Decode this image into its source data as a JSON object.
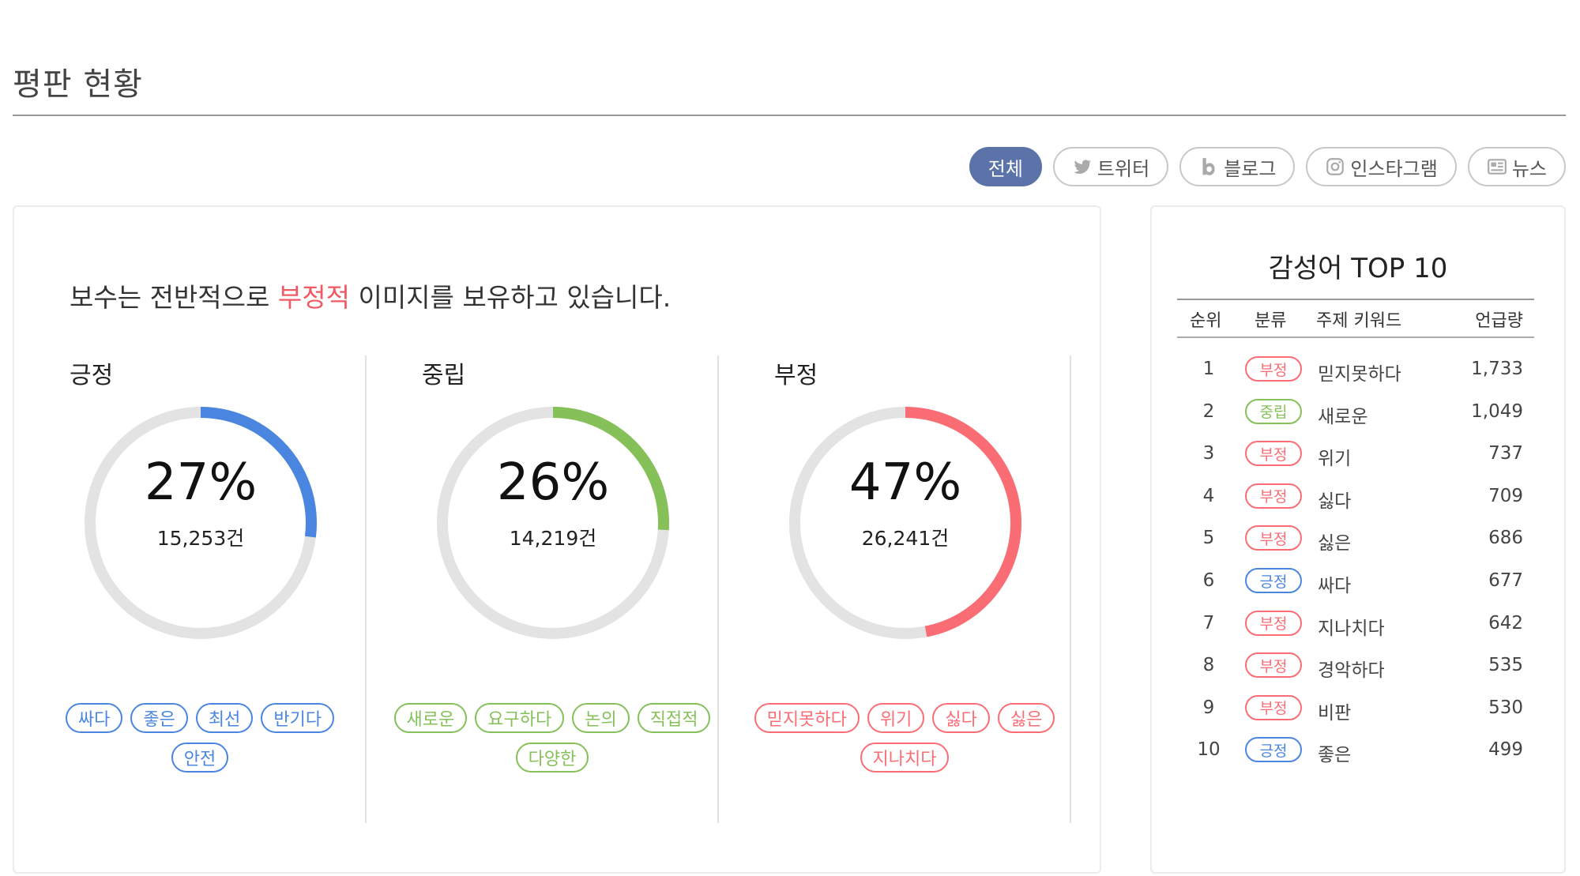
{
  "page": {
    "title": "평판 현황"
  },
  "filters": [
    {
      "label": "전체",
      "icon": "",
      "active": true
    },
    {
      "label": "트위터",
      "icon": "twitter-icon",
      "active": false
    },
    {
      "label": "블로그",
      "icon": "blog-icon",
      "active": false
    },
    {
      "label": "인스타그램",
      "icon": "instagram-icon",
      "active": false
    },
    {
      "label": "뉴스",
      "icon": "news-icon",
      "active": false
    }
  ],
  "summary": {
    "prefix": "보수는 전반적으로 ",
    "highlight": "부정적",
    "suffix": " 이미지를 보유하고 있습니다."
  },
  "sentiments": [
    {
      "label": "긍정",
      "percent": "27%",
      "value": 27,
      "count": "15,253건",
      "color": "#4a86e0",
      "tags": [
        "싸다",
        "좋은",
        "최선",
        "반기다",
        "안전"
      ]
    },
    {
      "label": "중립",
      "percent": "26%",
      "value": 26,
      "count": "14,219건",
      "color": "#86c059",
      "tags": [
        "새로운",
        "요구하다",
        "논의",
        "직접적",
        "다양한"
      ]
    },
    {
      "label": "부정",
      "percent": "47%",
      "value": 47,
      "count": "26,241건",
      "color": "#fb6d75",
      "tags": [
        "믿지못하다",
        "위기",
        "싫다",
        "싫은",
        "지나치다"
      ]
    }
  ],
  "top10": {
    "title": "감성어 TOP 10",
    "headers": {
      "rank": "순위",
      "category": "분류",
      "keyword": "주제 키워드",
      "mentions": "언급량"
    },
    "rows": [
      {
        "rank": "1",
        "category": "부정",
        "keyword": "믿지못하다",
        "mentions": "1,733"
      },
      {
        "rank": "2",
        "category": "중립",
        "keyword": "새로운",
        "mentions": "1,049"
      },
      {
        "rank": "3",
        "category": "부정",
        "keyword": "위기",
        "mentions": "737"
      },
      {
        "rank": "4",
        "category": "부정",
        "keyword": "싫다",
        "mentions": "709"
      },
      {
        "rank": "5",
        "category": "부정",
        "keyword": "싫은",
        "mentions": "686"
      },
      {
        "rank": "6",
        "category": "긍정",
        "keyword": "싸다",
        "mentions": "677"
      },
      {
        "rank": "7",
        "category": "부정",
        "keyword": "지나치다",
        "mentions": "642"
      },
      {
        "rank": "8",
        "category": "부정",
        "keyword": "경악하다",
        "mentions": "535"
      },
      {
        "rank": "9",
        "category": "부정",
        "keyword": "비판",
        "mentions": "530"
      },
      {
        "rank": "10",
        "category": "긍정",
        "keyword": "좋은",
        "mentions": "499"
      }
    ]
  },
  "colors": {
    "positive": "#4a86e0",
    "neutral": "#86c059",
    "negative": "#fb6d75",
    "active_filter": "#5b73a8",
    "ring_track": "#e3e3e3"
  }
}
